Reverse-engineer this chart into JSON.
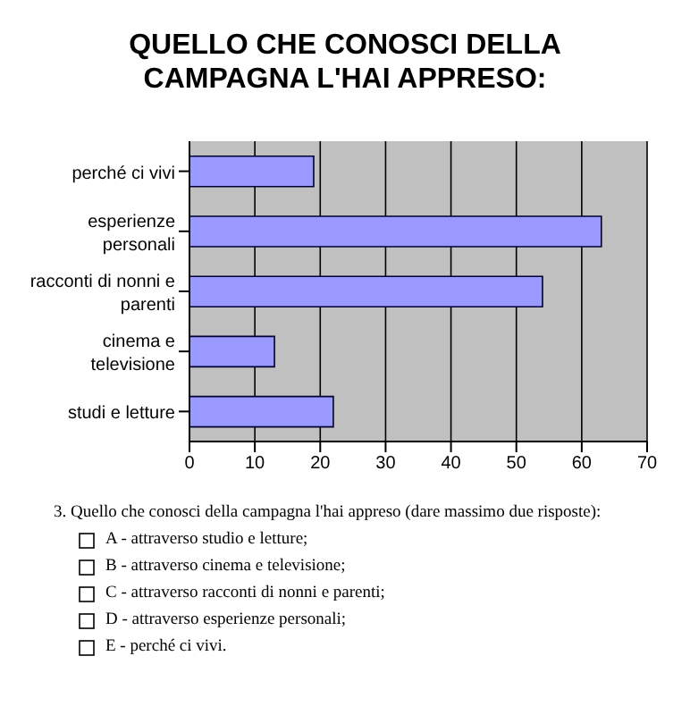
{
  "chart_data": {
    "type": "bar",
    "orientation": "horizontal",
    "title": "QUELLO CHE CONOSCI DELLA CAMPAGNA L'HAI APPRESO:",
    "categories": [
      "perché ci vivi",
      "esperienze personali",
      "racconti di nonni e parenti",
      "cinema e televisione",
      "studi e letture"
    ],
    "values": [
      19,
      63,
      54,
      13,
      22
    ],
    "color": "#9999ff",
    "xlim": [
      0,
      70
    ],
    "xticks": [
      0,
      10,
      20,
      30,
      40,
      50,
      60,
      70
    ],
    "grid": "x",
    "annotations": [
      "3.   Quello che conosci della campagna l'hai appreso (dare massimo due risposte):",
      "A - attraverso studio e letture;",
      "B - attraverso cinema e televisione;",
      "C - attraverso racconti di nonni e parenti;",
      "D - attraverso esperienze personali;",
      "E - perché ci vivi."
    ]
  }
}
